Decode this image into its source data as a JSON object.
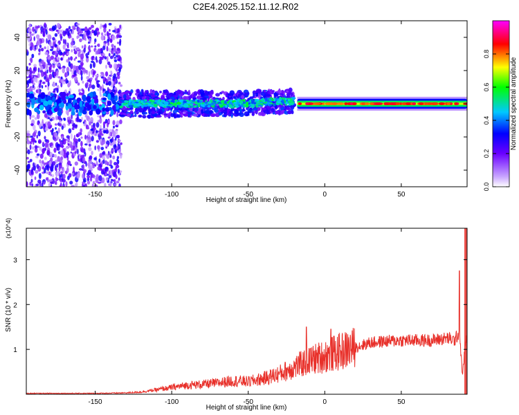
{
  "title": "C2E4.2025.152.11.12.R02",
  "colors": {
    "snr_line": "#e8302a",
    "spectrogram_faint": "#d9b8ff",
    "spectrogram_mid": "#7b2fe0",
    "spectrogram_core": "#2440e6"
  },
  "chart_data": [
    {
      "type": "heatmap",
      "xlabel": "Height of straight line (km)",
      "ylabel": "Frequency (Hz)",
      "xlim": [
        -195,
        93
      ],
      "ylim": [
        -50,
        50
      ],
      "x_ticks": [
        -150,
        -100,
        -50,
        0,
        50
      ],
      "y_ticks": [
        -40,
        -20,
        0,
        20,
        40
      ],
      "colorbar": {
        "label": "Normalized spectral amplitude",
        "range": [
          0,
          1
        ],
        "ticks": [
          "0.0",
          "0.2",
          "0.4",
          "0.6",
          "0.8"
        ],
        "colormap": "rainbow (white-violet-blue-cyan-green-yellow-red-magenta)"
      },
      "regions": [
        {
          "x_range": [
            -195,
            -133
          ],
          "description_key": "broadband",
          "freq_range": [
            -50,
            48
          ],
          "level": 0.3
        },
        {
          "x_range": [
            -133,
            -20
          ],
          "description_key": "band",
          "freq_range": [
            -8,
            8
          ],
          "level": 0.45
        },
        {
          "x_range": [
            -18,
            93
          ],
          "description_key": "narrowband",
          "freq_range": [
            -3,
            3
          ],
          "level": 0.8
        }
      ],
      "grid": false
    },
    {
      "type": "line",
      "xlabel": "Height of straight line (km)",
      "ylabel": "SNR (10 * v/v)",
      "y_multiplier": "(x10^4)",
      "xlim": [
        -195,
        93
      ],
      "ylim": [
        0,
        3.7
      ],
      "x_ticks": [
        -150,
        -100,
        -50,
        0,
        50
      ],
      "y_ticks": [
        1,
        2,
        3
      ],
      "series": [
        {
          "x": [
            -195,
            -150,
            -130,
            -120,
            -110,
            -100,
            -90,
            -80,
            -70,
            -60,
            -50,
            -40,
            -30,
            -20,
            -10,
            0,
            10,
            20,
            30,
            40,
            50,
            60,
            70,
            80,
            85,
            88,
            90,
            92,
            93
          ],
          "y": [
            0.02,
            0.02,
            0.03,
            0.05,
            0.1,
            0.15,
            0.2,
            0.22,
            0.25,
            0.3,
            0.28,
            0.35,
            0.45,
            0.6,
            0.75,
            0.85,
            0.95,
            1.05,
            1.15,
            1.18,
            1.2,
            1.2,
            1.2,
            1.25,
            1.2,
            1.4,
            0.4,
            1.2,
            1.2
          ],
          "spikes": [
            {
              "x": -12,
              "y": 1.5
            },
            {
              "x": 4,
              "y": 1.45
            },
            {
              "x": 88,
              "y": 2.75
            }
          ]
        }
      ],
      "grid": false
    }
  ]
}
